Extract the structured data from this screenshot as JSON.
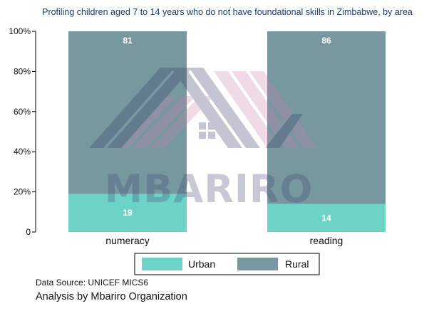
{
  "chart_data": {
    "type": "bar",
    "stacked": true,
    "title": "Profiling children aged 7 to 14 years who do not have foundational skills in Zimbabwe, by area",
    "xlabel": "",
    "ylabel": "",
    "categories": [
      "numeracy",
      "reading"
    ],
    "series": [
      {
        "name": "Urban",
        "values": [
          19,
          14
        ],
        "color": "#6dd3c7"
      },
      {
        "name": "Rural",
        "values": [
          81,
          86
        ],
        "color": "#78989f"
      }
    ],
    "ylim": [
      0,
      100
    ],
    "yticks": [
      "0",
      "20%",
      "40%",
      "60%",
      "80%",
      "100%"
    ],
    "yticks_values": [
      0,
      20,
      40,
      60,
      80,
      100
    ],
    "grid": false,
    "legend_position": "bottom"
  },
  "watermark": {
    "text": "MBARIRO"
  },
  "footer": {
    "source": "Data Source: UNICEF MICS6",
    "analysis": "Analysis by Mbariro Organization"
  }
}
